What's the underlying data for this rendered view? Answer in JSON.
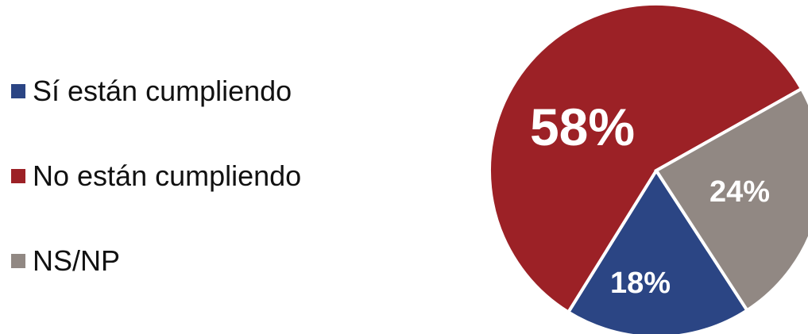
{
  "chart_data": {
    "type": "pie",
    "title": "",
    "legend_position": "left",
    "slices": [
      {
        "name": "Sí están cumpliendo",
        "value": 18,
        "label": "18%",
        "color": "#2b4584"
      },
      {
        "name": "No están cumpliendo",
        "value": 58,
        "label": "58%",
        "color": "#9c2126"
      },
      {
        "name": "NS/NP",
        "value": 24,
        "label": "24%",
        "color": "#918883"
      }
    ]
  }
}
